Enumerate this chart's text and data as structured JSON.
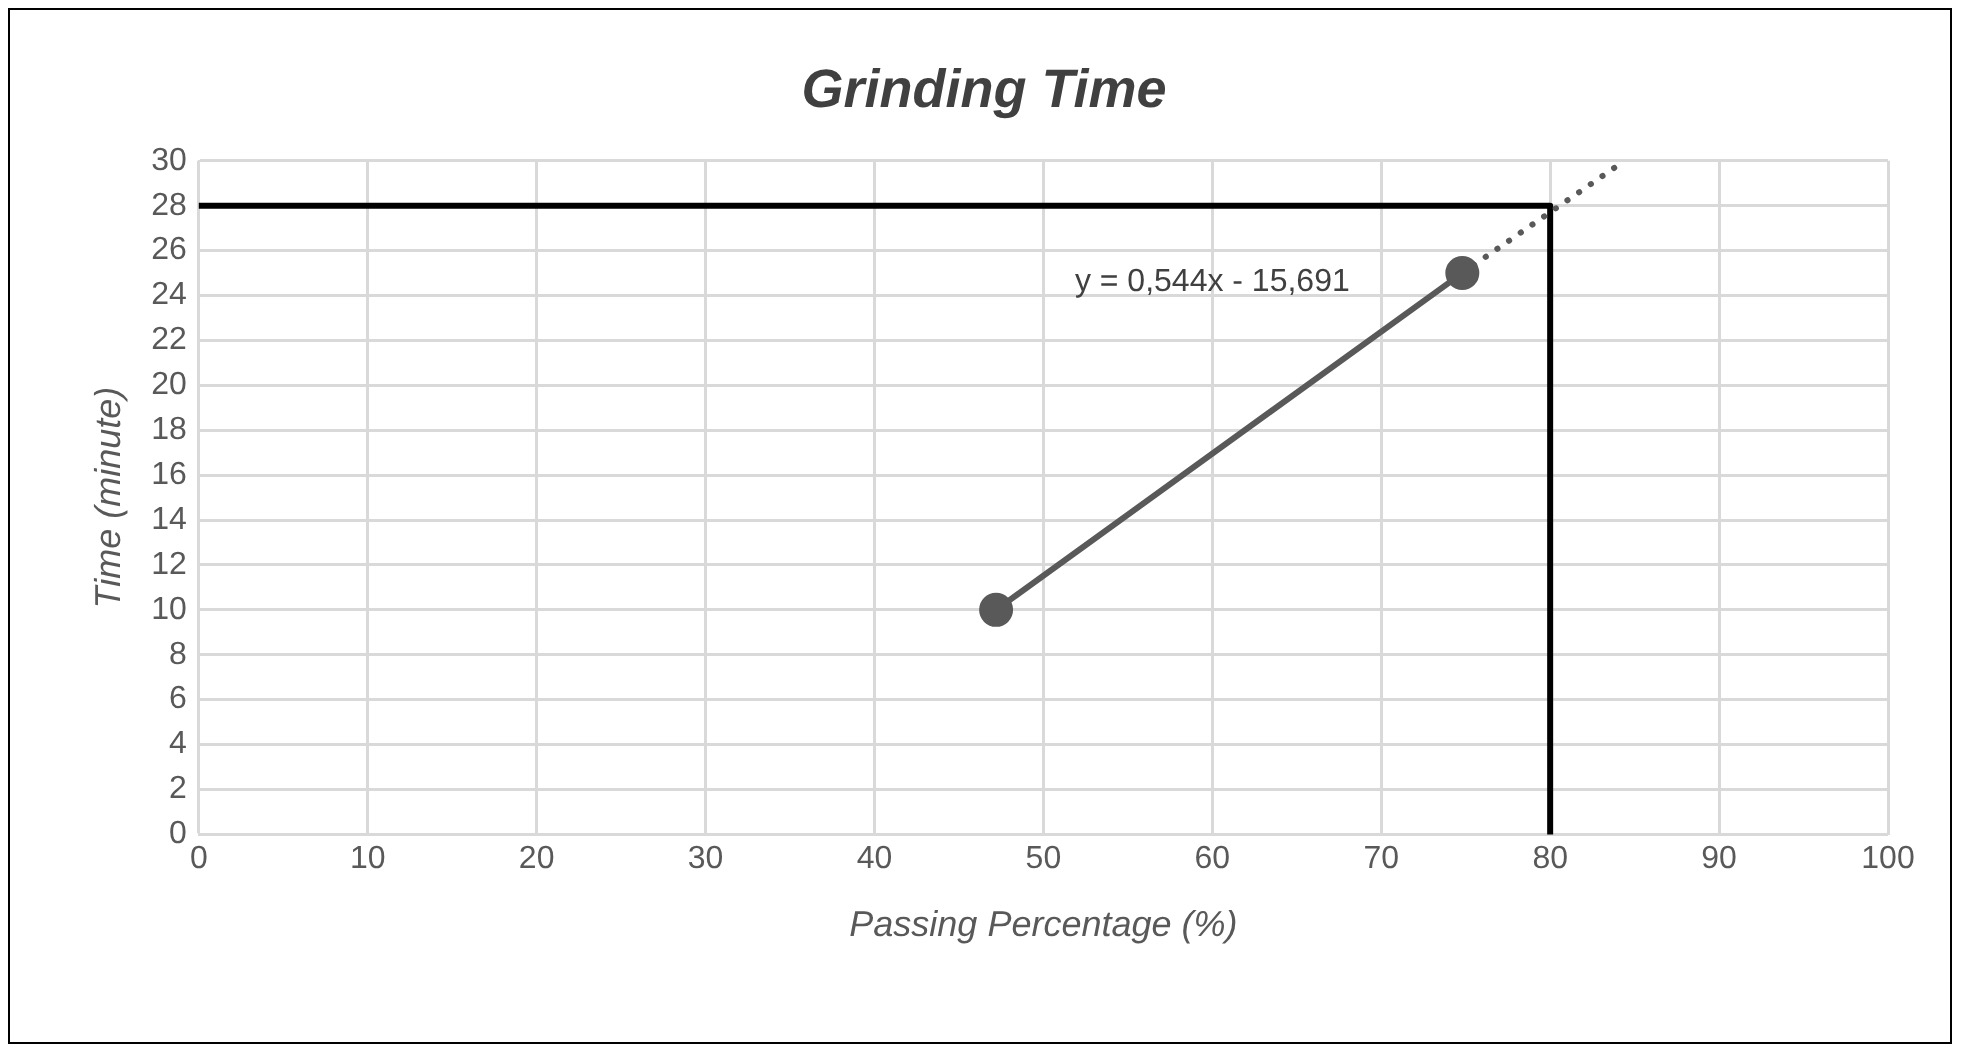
{
  "chart_data": {
    "type": "line",
    "title": "Grinding Time",
    "xlabel": "Passing Percentage (%)",
    "ylabel": "Time (minute)",
    "xlim": [
      0,
      100
    ],
    "xticks": [
      0,
      10,
      20,
      30,
      40,
      50,
      60,
      70,
      80,
      90,
      100
    ],
    "ylim": [
      0,
      30
    ],
    "yticks": [
      0,
      2,
      4,
      6,
      8,
      10,
      12,
      14,
      16,
      18,
      20,
      22,
      24,
      26,
      28,
      30
    ],
    "grid": true,
    "legend": false,
    "series": [
      {
        "x": [
          47.2,
          74.8
        ],
        "values": [
          10,
          25
        ],
        "color": "#595959",
        "marker": "circle",
        "line_style": "solid"
      },
      {
        "x": [
          74.8,
          84.4
        ],
        "values": [
          25,
          30
        ],
        "color": "#595959",
        "marker": "none",
        "line_style": "dotted"
      },
      {
        "x": [
          0,
          80,
          80
        ],
        "values": [
          28,
          28,
          0
        ],
        "color": "#000000",
        "marker": "none",
        "line_style": "solid"
      }
    ],
    "annotations": [
      "y = 0,544x - 15,691"
    ]
  }
}
